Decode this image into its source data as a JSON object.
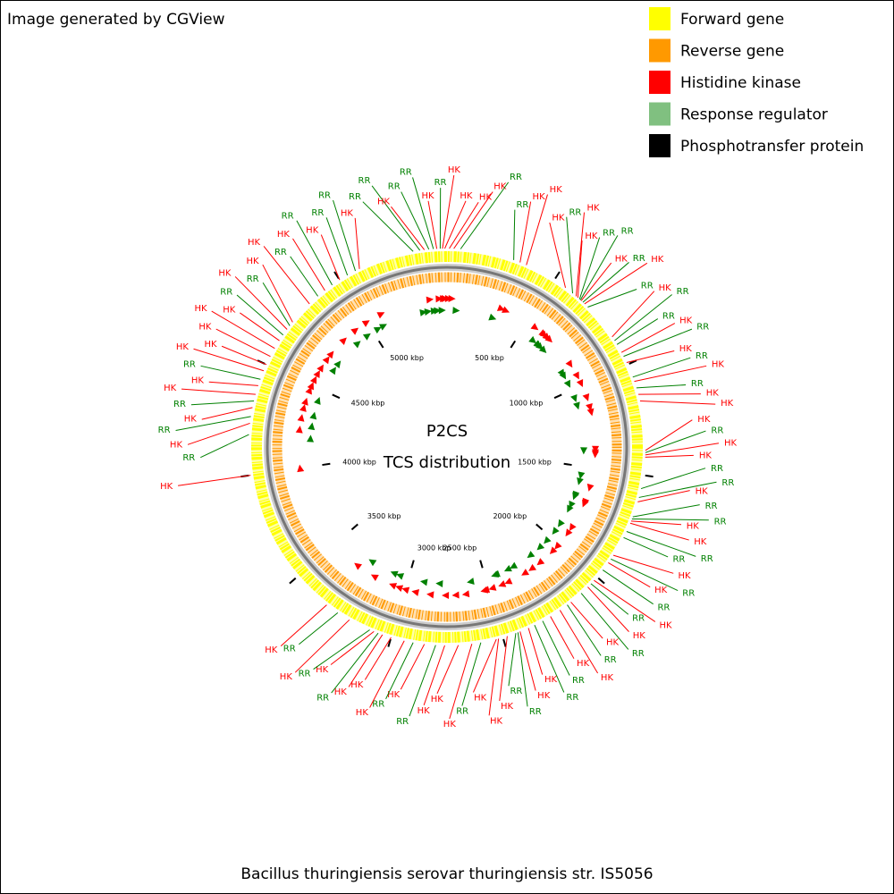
{
  "header": {
    "title": "Image generated by CGView"
  },
  "legend": {
    "items": [
      {
        "name": "Forward gene",
        "color": "#ffff00"
      },
      {
        "name": "Reverse gene",
        "color": "#ff9900"
      },
      {
        "name": "Histidine kinase",
        "color": "#ff0000"
      },
      {
        "name": "Response regulator",
        "color": "#80c080"
      },
      {
        "name": "Phosphotransfer protein",
        "color": "#000000"
      }
    ]
  },
  "center": {
    "title": "P2CS",
    "subtitle": "TCS distribution"
  },
  "footer": {
    "organism": "Bacillus thuringiensis serovar thuringiensis str. IS5056"
  },
  "axis_range_kbp": [
    0,
    5500
  ],
  "ticks": [
    {
      "value": 500,
      "label": "500 kbp"
    },
    {
      "value": 1000,
      "label": "1000 kbp"
    },
    {
      "value": 1500,
      "label": "1500 kbp"
    },
    {
      "value": 2000,
      "label": "2000 kbp"
    },
    {
      "value": 2500,
      "label": "2500 kbp"
    },
    {
      "value": 3000,
      "label": "3000 kbp"
    },
    {
      "value": 3500,
      "label": "3500 kbp"
    },
    {
      "value": 4000,
      "label": "4000 kbp"
    },
    {
      "value": 4500,
      "label": "4500 kbp"
    },
    {
      "value": 5000,
      "label": "5000 kbp"
    }
  ],
  "label_colors": {
    "HK": "#ff0000",
    "RR": "#008000"
  },
  "features": [
    {
      "label": "HK",
      "position_kbp": 10
    },
    {
      "label": "HK",
      "position_kbp": 30
    },
    {
      "label": "RR",
      "position_kbp": 60
    },
    {
      "label": "RR",
      "position_kbp": 300
    },
    {
      "label": "HK",
      "position_kbp": 330
    },
    {
      "label": "HK",
      "position_kbp": 360
    },
    {
      "label": "HK",
      "position_kbp": 560
    },
    {
      "label": "RR",
      "position_kbp": 600
    },
    {
      "label": "HK",
      "position_kbp": 620
    },
    {
      "label": "HK",
      "position_kbp": 630
    },
    {
      "label": "RR",
      "position_kbp": 640
    },
    {
      "label": "RR",
      "position_kbp": 645
    },
    {
      "label": "HK",
      "position_kbp": 650
    },
    {
      "label": "RR",
      "position_kbp": 660
    },
    {
      "label": "HK",
      "position_kbp": 670
    },
    {
      "label": "RR",
      "position_kbp": 690
    },
    {
      "label": "HK",
      "position_kbp": 860
    },
    {
      "label": "RR",
      "position_kbp": 880
    },
    {
      "label": "RR",
      "position_kbp": 900
    },
    {
      "label": "HK",
      "position_kbp": 940
    },
    {
      "label": "RR",
      "position_kbp": 960
    },
    {
      "label": "HK",
      "position_kbp": 990
    },
    {
      "label": "RR",
      "position_kbp": 1060
    },
    {
      "label": "HK",
      "position_kbp": 1080
    },
    {
      "label": "RR",
      "position_kbp": 1110
    },
    {
      "label": "HK",
      "position_kbp": 1140
    },
    {
      "label": "HK",
      "position_kbp": 1170
    },
    {
      "label": "HK",
      "position_kbp": 1390
    },
    {
      "label": "RR",
      "position_kbp": 1400
    },
    {
      "label": "HK",
      "position_kbp": 1410
    },
    {
      "label": "HK",
      "position_kbp": 1420
    },
    {
      "label": "RR",
      "position_kbp": 1560
    },
    {
      "label": "RR",
      "position_kbp": 1600
    },
    {
      "label": "HK",
      "position_kbp": 1620
    },
    {
      "label": "RR",
      "position_kbp": 1690
    },
    {
      "label": "RR",
      "position_kbp": 1700
    },
    {
      "label": "HK",
      "position_kbp": 1710
    },
    {
      "label": "HK",
      "position_kbp": 1720
    },
    {
      "label": "RR",
      "position_kbp": 1760
    },
    {
      "label": "RR",
      "position_kbp": 1790
    },
    {
      "label": "HK",
      "position_kbp": 1880
    },
    {
      "label": "RR",
      "position_kbp": 1900
    },
    {
      "label": "HK",
      "position_kbp": 1920
    },
    {
      "label": "RR",
      "position_kbp": 1960
    },
    {
      "label": "HK",
      "position_kbp": 2020
    },
    {
      "label": "RR",
      "position_kbp": 2040
    },
    {
      "label": "HK",
      "position_kbp": 2060
    },
    {
      "label": "RR",
      "position_kbp": 2100
    },
    {
      "label": "HK",
      "position_kbp": 2160
    },
    {
      "label": "RR",
      "position_kbp": 2180
    },
    {
      "label": "HK",
      "position_kbp": 2220
    },
    {
      "label": "HK",
      "position_kbp": 2270
    },
    {
      "label": "RR",
      "position_kbp": 2310
    },
    {
      "label": "RR",
      "position_kbp": 2350
    },
    {
      "label": "HK",
      "position_kbp": 2380
    },
    {
      "label": "HK",
      "position_kbp": 2420
    },
    {
      "label": "RR",
      "position_kbp": 2430
    },
    {
      "label": "RR",
      "position_kbp": 2440
    },
    {
      "label": "HK",
      "position_kbp": 2480
    },
    {
      "label": "HK",
      "position_kbp": 2520
    },
    {
      "label": "HK",
      "position_kbp": 2530
    },
    {
      "label": "RR",
      "position_kbp": 2600
    },
    {
      "label": "HK",
      "position_kbp": 2640
    },
    {
      "label": "HK",
      "position_kbp": 2700
    },
    {
      "label": "HK",
      "position_kbp": 2760
    },
    {
      "label": "RR",
      "position_kbp": 2800
    },
    {
      "label": "HK",
      "position_kbp": 2850
    },
    {
      "label": "RR",
      "position_kbp": 2900
    },
    {
      "label": "HK",
      "position_kbp": 2940
    },
    {
      "label": "HK",
      "position_kbp": 3000
    },
    {
      "label": "HK",
      "position_kbp": 3040
    },
    {
      "label": "RR",
      "position_kbp": 3060
    },
    {
      "label": "HK",
      "position_kbp": 3080
    },
    {
      "label": "RR",
      "position_kbp": 3100
    },
    {
      "label": "HK",
      "position_kbp": 3200
    },
    {
      "label": "RR",
      "position_kbp": 3260
    },
    {
      "label": "HK",
      "position_kbp": 3320
    },
    {
      "label": "HK",
      "position_kbp": 4000
    },
    {
      "label": "RR",
      "position_kbp": 4180
    },
    {
      "label": "HK",
      "position_kbp": 4230
    },
    {
      "label": "RR",
      "position_kbp": 4260
    },
    {
      "label": "HK",
      "position_kbp": 4300
    },
    {
      "label": "RR",
      "position_kbp": 4330
    },
    {
      "label": "HK",
      "position_kbp": 4360
    },
    {
      "label": "HK",
      "position_kbp": 4400
    },
    {
      "label": "RR",
      "position_kbp": 4430
    },
    {
      "label": "HK",
      "position_kbp": 4470
    },
    {
      "label": "HK",
      "position_kbp": 4500
    },
    {
      "label": "HK",
      "position_kbp": 4540
    },
    {
      "label": "HK",
      "position_kbp": 4580
    },
    {
      "label": "HK",
      "position_kbp": 4620
    },
    {
      "label": "RR",
      "position_kbp": 4650
    },
    {
      "label": "HK",
      "position_kbp": 4680
    },
    {
      "label": "RR",
      "position_kbp": 4700
    },
    {
      "label": "HK",
      "position_kbp": 4720
    },
    {
      "label": "HK",
      "position_kbp": 4830
    },
    {
      "label": "RR",
      "position_kbp": 4880
    },
    {
      "label": "HK",
      "position_kbp": 4920
    },
    {
      "label": "RR",
      "position_kbp": 4960
    },
    {
      "label": "HK",
      "position_kbp": 5000
    },
    {
      "label": "RR",
      "position_kbp": 5040
    },
    {
      "label": "RR",
      "position_kbp": 5080
    },
    {
      "label": "HK",
      "position_kbp": 5100
    },
    {
      "label": "RR",
      "position_kbp": 5350
    },
    {
      "label": "RR",
      "position_kbp": 5380
    },
    {
      "label": "HK",
      "position_kbp": 5400
    },
    {
      "label": "RR",
      "position_kbp": 5420
    },
    {
      "label": "RR",
      "position_kbp": 5440
    },
    {
      "label": "HK",
      "position_kbp": 5455
    },
    {
      "label": "RR",
      "position_kbp": 5470
    },
    {
      "label": "HK",
      "position_kbp": 5480
    },
    {
      "label": "HK",
      "position_kbp": 5490
    }
  ]
}
